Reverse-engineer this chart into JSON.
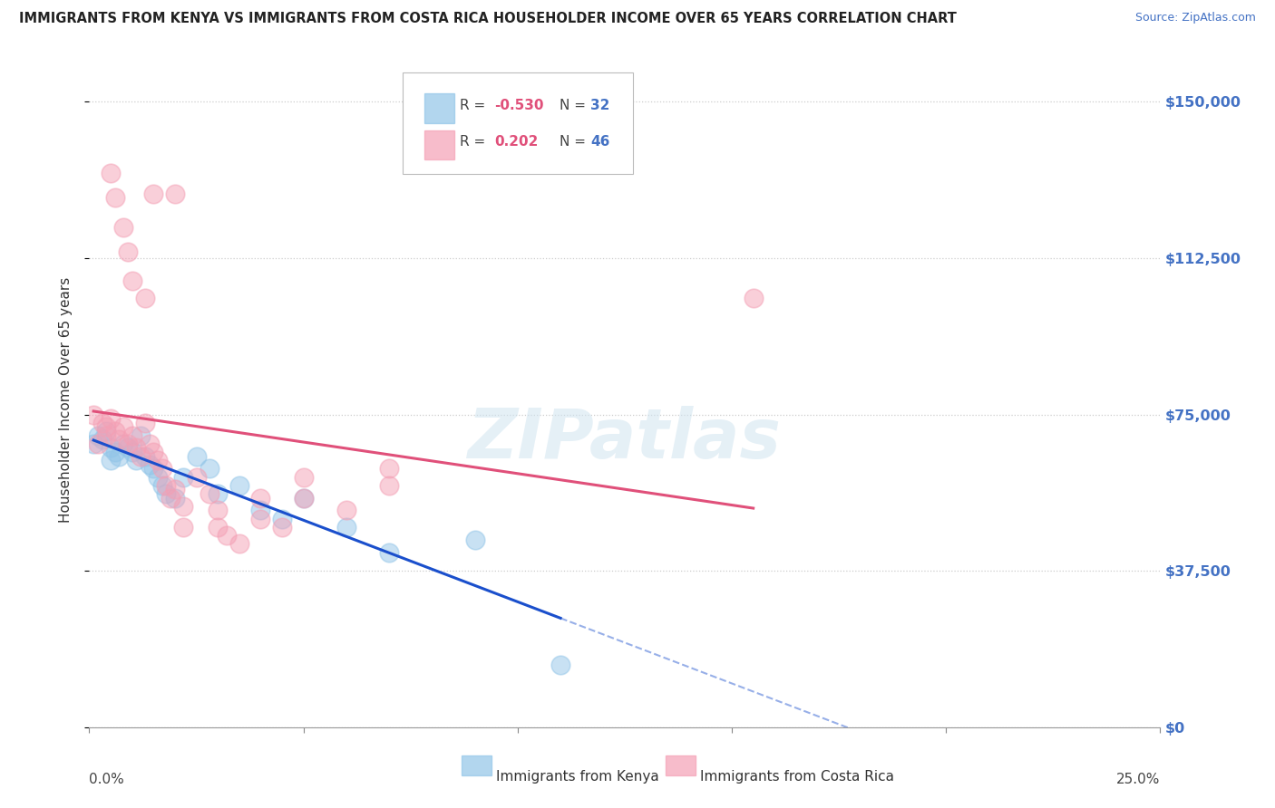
{
  "title": "IMMIGRANTS FROM KENYA VS IMMIGRANTS FROM COSTA RICA HOUSEHOLDER INCOME OVER 65 YEARS CORRELATION CHART",
  "source": "Source: ZipAtlas.com",
  "ylabel_label": "Householder Income Over 65 years",
  "ylabel_ticks": [
    "$0",
    "$37,500",
    "$75,000",
    "$112,500",
    "$150,000"
  ],
  "ylabel_values": [
    0,
    37500,
    75000,
    112500,
    150000
  ],
  "xlim": [
    0.0,
    0.25
  ],
  "ylim": [
    0,
    157000
  ],
  "kenya_R": -0.53,
  "kenya_N": 32,
  "costarica_R": 0.202,
  "costarica_N": 46,
  "kenya_color": "#92C5E8",
  "costarica_color": "#F4A0B5",
  "kenya_line_color": "#1A4FCC",
  "costarica_line_color": "#E0507A",
  "watermark": "ZIPatlas",
  "kenya_points": [
    [
      0.001,
      68000
    ],
    [
      0.002,
      70000
    ],
    [
      0.003,
      69000
    ],
    [
      0.004,
      71000
    ],
    [
      0.005,
      67000
    ],
    [
      0.005,
      64000
    ],
    [
      0.006,
      66000
    ],
    [
      0.007,
      65000
    ],
    [
      0.008,
      68000
    ],
    [
      0.009,
      67000
    ],
    [
      0.01,
      66000
    ],
    [
      0.011,
      64000
    ],
    [
      0.012,
      70000
    ],
    [
      0.013,
      65000
    ],
    [
      0.014,
      63000
    ],
    [
      0.015,
      62000
    ],
    [
      0.016,
      60000
    ],
    [
      0.017,
      58000
    ],
    [
      0.018,
      56000
    ],
    [
      0.02,
      55000
    ],
    [
      0.022,
      60000
    ],
    [
      0.025,
      65000
    ],
    [
      0.028,
      62000
    ],
    [
      0.03,
      56000
    ],
    [
      0.035,
      58000
    ],
    [
      0.04,
      52000
    ],
    [
      0.045,
      50000
    ],
    [
      0.05,
      55000
    ],
    [
      0.06,
      48000
    ],
    [
      0.07,
      42000
    ],
    [
      0.09,
      45000
    ],
    [
      0.11,
      15000
    ]
  ],
  "costarica_points": [
    [
      0.001,
      75000
    ],
    [
      0.002,
      68000
    ],
    [
      0.003,
      73000
    ],
    [
      0.004,
      70000
    ],
    [
      0.004,
      72000
    ],
    [
      0.005,
      74000
    ],
    [
      0.006,
      71000
    ],
    [
      0.007,
      69000
    ],
    [
      0.008,
      72000
    ],
    [
      0.009,
      68000
    ],
    [
      0.01,
      70000
    ],
    [
      0.011,
      67000
    ],
    [
      0.012,
      65000
    ],
    [
      0.013,
      73000
    ],
    [
      0.014,
      68000
    ],
    [
      0.015,
      66000
    ],
    [
      0.016,
      64000
    ],
    [
      0.017,
      62000
    ],
    [
      0.018,
      58000
    ],
    [
      0.019,
      55000
    ],
    [
      0.02,
      57000
    ],
    [
      0.022,
      53000
    ],
    [
      0.022,
      48000
    ],
    [
      0.025,
      60000
    ],
    [
      0.028,
      56000
    ],
    [
      0.03,
      48000
    ],
    [
      0.03,
      52000
    ],
    [
      0.032,
      46000
    ],
    [
      0.035,
      44000
    ],
    [
      0.04,
      55000
    ],
    [
      0.04,
      50000
    ],
    [
      0.045,
      48000
    ],
    [
      0.05,
      60000
    ],
    [
      0.05,
      55000
    ],
    [
      0.06,
      52000
    ],
    [
      0.07,
      58000
    ],
    [
      0.015,
      128000
    ],
    [
      0.02,
      128000
    ],
    [
      0.005,
      133000
    ],
    [
      0.006,
      127000
    ],
    [
      0.008,
      120000
    ],
    [
      0.009,
      114000
    ],
    [
      0.01,
      107000
    ],
    [
      0.013,
      103000
    ],
    [
      0.155,
      103000
    ],
    [
      0.07,
      62000
    ]
  ]
}
